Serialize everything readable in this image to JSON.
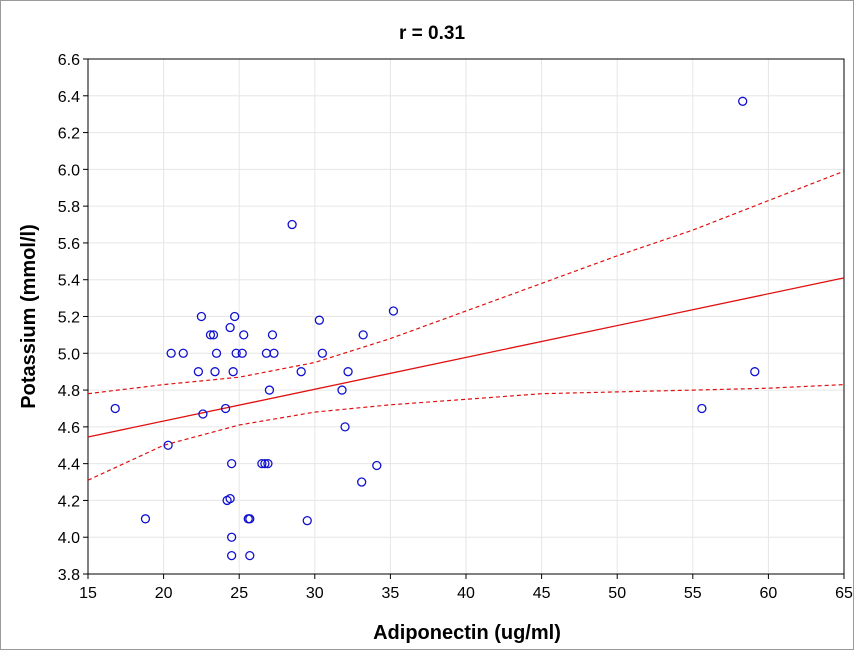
{
  "chart_data": {
    "type": "scatter",
    "title": "r = 0.31",
    "xlabel": "Adiponectin (ug/ml)",
    "ylabel": "Potassium (mmol/l)",
    "xlim": [
      15,
      65
    ],
    "ylim": [
      3.8,
      6.6
    ],
    "xticks": [
      "15",
      "20",
      "25",
      "30",
      "35",
      "40",
      "45",
      "50",
      "55",
      "60",
      "65"
    ],
    "yticks": [
      "3.8",
      "4.0",
      "4.2",
      "4.4",
      "4.6",
      "4.8",
      "5.0",
      "5.2",
      "5.4",
      "5.6",
      "5.8",
      "6.0",
      "6.2",
      "6.4",
      "6.6"
    ],
    "grid": true,
    "points": [
      [
        16.8,
        4.7
      ],
      [
        18.8,
        4.1
      ],
      [
        20.3,
        4.5
      ],
      [
        20.5,
        5.0
      ],
      [
        21.3,
        5.0
      ],
      [
        22.3,
        4.9
      ],
      [
        22.5,
        5.2
      ],
      [
        22.6,
        4.67
      ],
      [
        23.1,
        5.1
      ],
      [
        23.3,
        5.1
      ],
      [
        23.4,
        4.9
      ],
      [
        23.5,
        5.0
      ],
      [
        24.1,
        4.7
      ],
      [
        24.2,
        4.2
      ],
      [
        24.4,
        4.21
      ],
      [
        24.4,
        5.14
      ],
      [
        24.5,
        4.4
      ],
      [
        24.5,
        4.0
      ],
      [
        24.5,
        3.9
      ],
      [
        24.6,
        4.9
      ],
      [
        24.7,
        5.2
      ],
      [
        24.8,
        5.0
      ],
      [
        25.2,
        5.0
      ],
      [
        25.3,
        5.1
      ],
      [
        25.6,
        4.1
      ],
      [
        25.7,
        4.1
      ],
      [
        25.7,
        3.9
      ],
      [
        26.5,
        4.4
      ],
      [
        26.7,
        4.4
      ],
      [
        26.8,
        5.0
      ],
      [
        26.9,
        4.4
      ],
      [
        27.0,
        4.8
      ],
      [
        27.2,
        5.1
      ],
      [
        27.3,
        5.0
      ],
      [
        28.5,
        5.7
      ],
      [
        29.1,
        4.9
      ],
      [
        29.5,
        4.09
      ],
      [
        30.3,
        5.18
      ],
      [
        30.5,
        5.0
      ],
      [
        31.8,
        4.8
      ],
      [
        32.0,
        4.6
      ],
      [
        32.2,
        4.9
      ],
      [
        33.1,
        4.3
      ],
      [
        33.2,
        5.1
      ],
      [
        34.1,
        4.39
      ],
      [
        35.2,
        5.23
      ],
      [
        55.6,
        4.7
      ],
      [
        58.3,
        6.37
      ],
      [
        59.1,
        4.9
      ]
    ],
    "point_color": "#1010d0",
    "regression": {
      "x": [
        15,
        65
      ],
      "y": [
        4.545,
        5.41
      ],
      "color": "#e01010"
    },
    "confidence_upper": {
      "x": [
        15,
        20,
        25,
        30,
        35,
        40,
        45,
        50,
        55,
        60,
        65
      ],
      "y": [
        4.78,
        4.83,
        4.87,
        4.95,
        5.08,
        5.23,
        5.38,
        5.53,
        5.67,
        5.83,
        5.99
      ]
    },
    "confidence_lower": {
      "x": [
        15,
        20,
        25,
        30,
        35,
        40,
        45,
        50,
        55,
        60,
        65
      ],
      "y": [
        4.31,
        4.5,
        4.61,
        4.68,
        4.72,
        4.75,
        4.78,
        4.79,
        4.8,
        4.81,
        4.83
      ]
    }
  }
}
